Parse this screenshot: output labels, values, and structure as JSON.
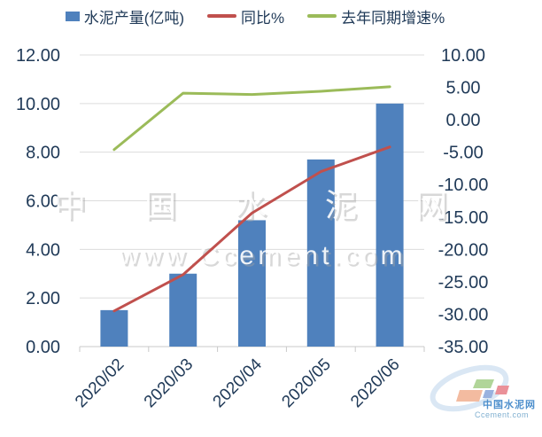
{
  "legend": {
    "items": [
      {
        "label": "水泥产量(亿吨)",
        "marker": "square",
        "color": "#4f81bd"
      },
      {
        "label": "同比%",
        "marker": "line",
        "color": "#c0504d"
      },
      {
        "label": "去年同期增速%",
        "marker": "line",
        "color": "#9bbb59"
      }
    ]
  },
  "watermark": {
    "line1": "中 国 水 泥 网",
    "line2": "www.Ccement.com"
  },
  "logo": {
    "title": "中国水泥网",
    "subtitle": "Ccement.com"
  },
  "chart_data": {
    "type": "combo",
    "categories": [
      "2020/02",
      "2020/03",
      "2020/04",
      "2020/05",
      "2020/06"
    ],
    "series": [
      {
        "name": "水泥产量(亿吨)",
        "type": "bar",
        "y_axis": "left",
        "color": "#4f81bd",
        "values": [
          1.5,
          3.0,
          5.2,
          7.7,
          10.0
        ]
      },
      {
        "name": "同比%",
        "type": "line",
        "y_axis": "right",
        "color": "#c0504d",
        "values": [
          -29.5,
          -23.9,
          -14.4,
          -8.0,
          -4.2
        ]
      },
      {
        "name": "去年同期增速%",
        "type": "line",
        "y_axis": "right",
        "color": "#9bbb59",
        "values": [
          -4.6,
          4.1,
          3.9,
          4.4,
          5.1
        ]
      }
    ],
    "left_axis": {
      "min": 0,
      "max": 12,
      "step": 2,
      "tick_labels": [
        "12.00",
        "10.00",
        "8.00",
        "6.00",
        "4.00",
        "2.00",
        "0.00"
      ]
    },
    "right_axis": {
      "min": -35,
      "max": 10,
      "step": 5,
      "tick_labels": [
        "10.00",
        "5.00",
        "0.00",
        "-5.00",
        "-10.00",
        "-15.00",
        "-20.00",
        "-25.00",
        "-30.00",
        "-35.00"
      ]
    },
    "grid": true,
    "legend_position": "top",
    "x_label_rotation": -45,
    "grid_color": "#dcdcdc",
    "axis_line_color": "#c9c9c9",
    "text_color": "#1f3957"
  }
}
